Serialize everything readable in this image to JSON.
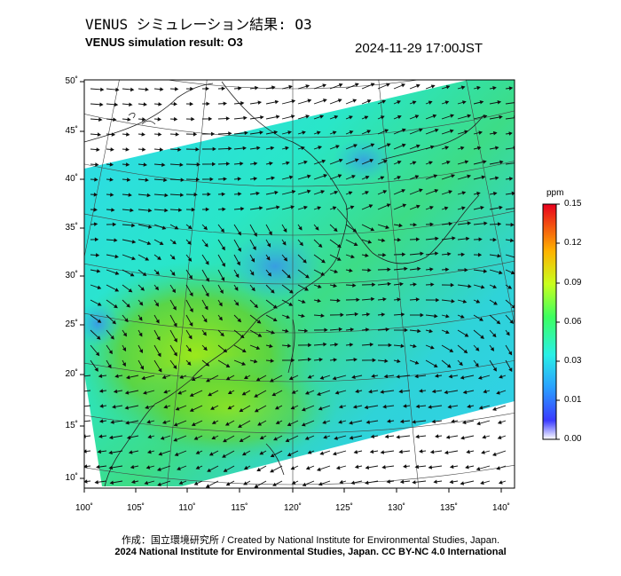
{
  "title_jp": "VENUS シミュレーション結果: O3",
  "title_en": "VENUS simulation result: O3",
  "timestamp": "2024-11-29 17:00JST",
  "map": {
    "lat_labels": [
      "50˚",
      "45˚",
      "40˚",
      "35˚",
      "30˚",
      "25˚",
      "20˚",
      "15˚",
      "10˚"
    ],
    "lon_labels": [
      "100˚",
      "105˚",
      "110˚",
      "115˚",
      "120˚",
      "125˚",
      "130˚",
      "135˚",
      "140˚"
    ],
    "lat_values": [
      50,
      45,
      40,
      35,
      30,
      25,
      20,
      15,
      10
    ],
    "lon_values": [
      100,
      105,
      110,
      115,
      120,
      125,
      130,
      135,
      140
    ]
  },
  "colorbar": {
    "unit": "ppm",
    "ticks": [
      "0.15",
      "0.12",
      "0.09",
      "0.06",
      "0.03",
      "0.01",
      "0.00"
    ],
    "colors": [
      "#ffffff",
      "#3a3aff",
      "#2aa0ff",
      "#29f0e6",
      "#3cff60",
      "#c8ff1e",
      "#ffb300",
      "#e8001e"
    ]
  },
  "credit_jp": "作成：国立環境研究所 / Created by National Institute for Environmental Studies, Japan.",
  "credit_en": "2024 National Institute for Environmental Studies, Japan. CC BY-NC 4.0 International"
}
